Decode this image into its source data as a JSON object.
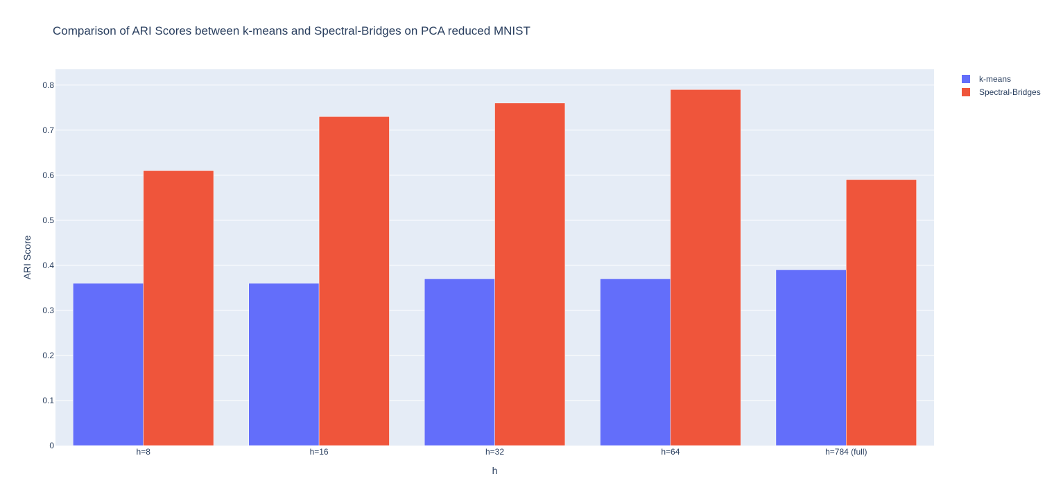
{
  "chart_data": {
    "type": "bar",
    "title": "Comparison of ARI Scores between k-means and Spectral-Bridges on PCA reduced MNIST",
    "xlabel": "h",
    "ylabel": "ARI Score",
    "categories": [
      "h=8",
      "h=16",
      "h=32",
      "h=64",
      "h=784 (full)"
    ],
    "series": [
      {
        "name": "k-means",
        "values": [
          0.36,
          0.36,
          0.37,
          0.37,
          0.39
        ],
        "color": "#636efa"
      },
      {
        "name": "Spectral-Bridges",
        "values": [
          0.61,
          0.73,
          0.76,
          0.79,
          0.59
        ],
        "color": "#ef553b"
      }
    ],
    "ylim": [
      0,
      0.835
    ],
    "yticks": [
      0,
      0.1,
      0.2,
      0.3,
      0.4,
      0.5,
      0.6,
      0.7,
      0.8
    ],
    "ytick_labels": [
      "0",
      "0.1",
      "0.2",
      "0.3",
      "0.4",
      "0.5",
      "0.6",
      "0.7",
      "0.8"
    ],
    "grid": true,
    "legend_position": "top-right",
    "plot_background": "#e5ecf6",
    "grid_color": "#ffffff"
  }
}
